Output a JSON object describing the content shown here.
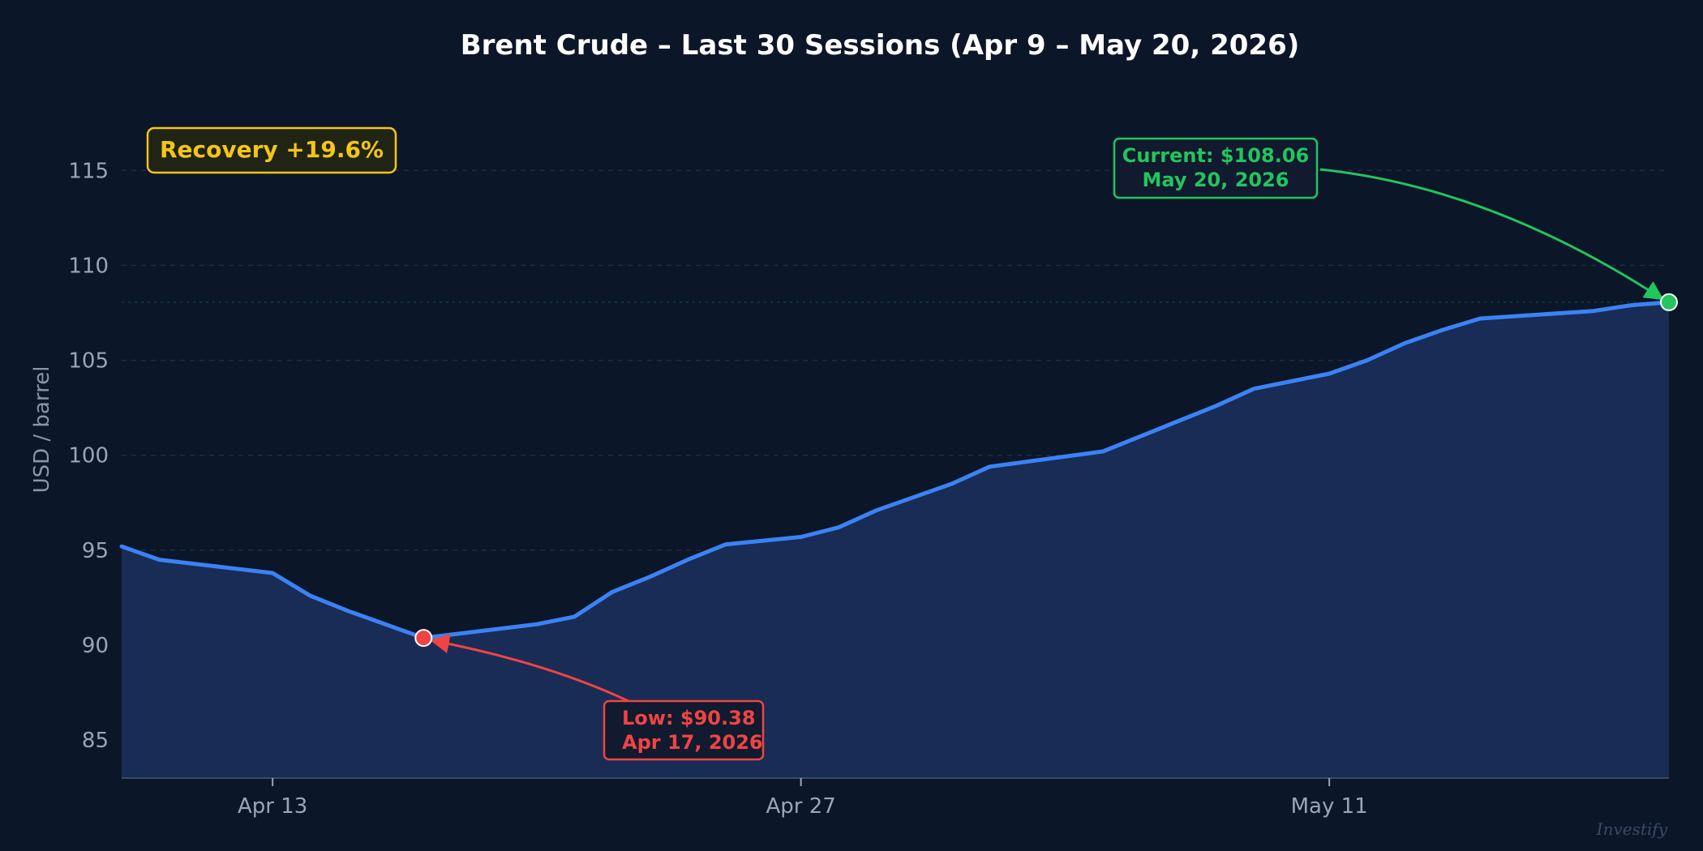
{
  "chart_data": {
    "type": "area",
    "title": "Brent Crude – Last 30 Sessions (Apr 9 – May 20, 2026)",
    "xlabel": "",
    "ylabel": "USD / barrel",
    "ylim": [
      83,
      118
    ],
    "yticks": [
      85,
      90,
      95,
      100,
      105,
      110,
      115
    ],
    "grid": true,
    "xlim": [
      "2026-04-09",
      "2026-05-20"
    ],
    "xticks": [
      {
        "date": "2026-04-13",
        "label": "Apr 13"
      },
      {
        "date": "2026-04-27",
        "label": "Apr 27"
      },
      {
        "date": "2026-05-11",
        "label": "May 11"
      }
    ],
    "series": [
      {
        "values": [
          {
            "x": "2026-04-09",
            "y": 95.2
          },
          {
            "x": "2026-04-10",
            "y": 94.5
          },
          {
            "x": "2026-04-13",
            "y": 93.8
          },
          {
            "x": "2026-04-14",
            "y": 92.6
          },
          {
            "x": "2026-04-15",
            "y": 91.8
          },
          {
            "x": "2026-04-17",
            "y": 90.38
          },
          {
            "x": "2026-04-20",
            "y": 91.1
          },
          {
            "x": "2026-04-21",
            "y": 91.5
          },
          {
            "x": "2026-04-22",
            "y": 92.8
          },
          {
            "x": "2026-04-23",
            "y": 93.6
          },
          {
            "x": "2026-04-24",
            "y": 94.5
          },
          {
            "x": "2026-04-25",
            "y": 95.3
          },
          {
            "x": "2026-04-27",
            "y": 95.7
          },
          {
            "x": "2026-04-28",
            "y": 96.2
          },
          {
            "x": "2026-04-29",
            "y": 97.1
          },
          {
            "x": "2026-05-01",
            "y": 98.5
          },
          {
            "x": "2026-05-02",
            "y": 99.4
          },
          {
            "x": "2026-05-05",
            "y": 100.2
          },
          {
            "x": "2026-05-06",
            "y": 101.0
          },
          {
            "x": "2026-05-07",
            "y": 101.8
          },
          {
            "x": "2026-05-08",
            "y": 102.6
          },
          {
            "x": "2026-05-09",
            "y": 103.5
          },
          {
            "x": "2026-05-11",
            "y": 104.3
          },
          {
            "x": "2026-05-12",
            "y": 105.0
          },
          {
            "x": "2026-05-13",
            "y": 105.9
          },
          {
            "x": "2026-05-14",
            "y": 106.6
          },
          {
            "x": "2026-05-15",
            "y": 107.2
          },
          {
            "x": "2026-05-18",
            "y": 107.6
          },
          {
            "x": "2026-05-19",
            "y": 107.9
          },
          {
            "x": "2026-05-20",
            "y": 108.06
          }
        ]
      }
    ],
    "reference_lines": [
      {
        "y": 108.06,
        "color": "#22c55e"
      },
      {
        "y": 90.38,
        "color": "#ef4444"
      }
    ],
    "annotations": {
      "low": {
        "x": "2026-04-17",
        "y": 90.38,
        "line1": "Low: $90.38",
        "line2": "Apr 17, 2026",
        "color": "#ef4444"
      },
      "current": {
        "x": "2026-05-20",
        "y": 108.06,
        "line1": "Current: $108.06",
        "line2": "May 20, 2026",
        "color": "#22c55e"
      },
      "badge": {
        "text": "Recovery  +19.6%",
        "color": "#f5c518"
      }
    },
    "colors": {
      "line": "#3b82f6",
      "area": "#1a2f5a",
      "grid": "#1e2d44",
      "background": "#0b1628"
    }
  },
  "watermark": "Investify"
}
